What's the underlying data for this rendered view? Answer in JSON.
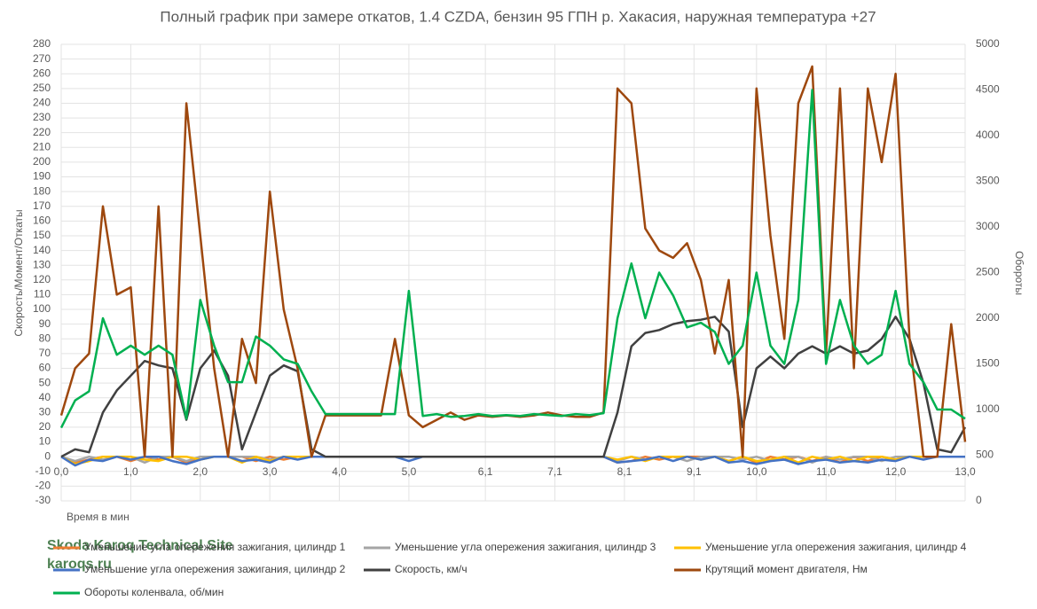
{
  "chart_data": {
    "type": "line",
    "title": "Полный график при замере откатов, 1.4 CZDA, бензин 95 ГПН р. Хакасия, наружная температура +27",
    "x_label": "Время в мин",
    "y_label": "Скорость/Момент/Откаты",
    "y2_label": "Обороты",
    "watermark": [
      "Skoda Karoq Technical Site",
      "karoqs.ru"
    ],
    "grid": true,
    "xlim": [
      0,
      13.0
    ],
    "xticks": [
      {
        "value": 0,
        "label": "0,0"
      },
      {
        "value": 1.0,
        "label": "1,0"
      },
      {
        "value": 2.0,
        "label": "2,0"
      },
      {
        "value": 3.0,
        "label": "3,0"
      },
      {
        "value": 4.0,
        "label": "4,0"
      },
      {
        "value": 5.0,
        "label": "5,0"
      },
      {
        "value": 6.1,
        "label": "6,1"
      },
      {
        "value": 7.1,
        "label": "7,1"
      },
      {
        "value": 8.1,
        "label": "8,1"
      },
      {
        "value": 9.1,
        "label": "9,1"
      },
      {
        "value": 10.0,
        "label": "10,0"
      },
      {
        "value": 11.0,
        "label": "11,0"
      },
      {
        "value": 12.0,
        "label": "12,0"
      },
      {
        "value": 13.0,
        "label": "13,0"
      }
    ],
    "ylim": [
      -30,
      280
    ],
    "yticks": [
      -30,
      -20,
      -10,
      0,
      10,
      20,
      30,
      40,
      50,
      60,
      70,
      80,
      90,
      100,
      110,
      120,
      130,
      140,
      150,
      160,
      170,
      180,
      190,
      200,
      210,
      220,
      230,
      240,
      250,
      260,
      270,
      280
    ],
    "y2lim": [
      0,
      5000
    ],
    "y2ticks": [
      0,
      500,
      1000,
      1500,
      2000,
      2500,
      3000,
      3500,
      4000,
      4500,
      5000
    ],
    "x": [
      0,
      0.2,
      0.4,
      0.6,
      0.8,
      1.0,
      1.2,
      1.4,
      1.6,
      1.8,
      2.0,
      2.2,
      2.4,
      2.6,
      2.8,
      3.0,
      3.2,
      3.4,
      3.6,
      3.8,
      4.0,
      4.2,
      4.4,
      4.6,
      4.8,
      5.0,
      5.2,
      5.4,
      5.6,
      5.8,
      6.0,
      6.2,
      6.4,
      6.6,
      6.8,
      7.0,
      7.2,
      7.4,
      7.6,
      7.8,
      8.0,
      8.2,
      8.4,
      8.6,
      8.8,
      9.0,
      9.2,
      9.4,
      9.6,
      9.8,
      10.0,
      10.2,
      10.4,
      10.6,
      10.8,
      11.0,
      11.2,
      11.4,
      11.6,
      11.8,
      12.0,
      12.2,
      12.4,
      12.6,
      12.8,
      13.0
    ],
    "series": [
      {
        "name": "Уменьшение угла опережения зажигания, цилиндр 1",
        "color": "#ed7d31",
        "values": [
          0,
          -4,
          -2,
          0,
          0,
          -3,
          0,
          -2,
          0,
          -4,
          0,
          0,
          0,
          0,
          -3,
          0,
          -2,
          0,
          0,
          0,
          0,
          0,
          0,
          0,
          0,
          0,
          0,
          0,
          0,
          0,
          0,
          0,
          0,
          0,
          0,
          0,
          0,
          0,
          0,
          0,
          -4,
          -3,
          0,
          -2,
          0,
          0,
          0,
          0,
          -3,
          0,
          -4,
          0,
          -2,
          0,
          -3,
          0,
          -4,
          0,
          -3,
          0,
          -2,
          0,
          0,
          0,
          0,
          0
        ]
      },
      {
        "name": "Уменьшение угла опережения зажигания, цилиндр 3",
        "color": "#a5a5a5",
        "values": [
          0,
          -3,
          0,
          -2,
          0,
          0,
          -4,
          0,
          0,
          -3,
          0,
          0,
          0,
          0,
          0,
          -2,
          0,
          0,
          0,
          0,
          0,
          0,
          0,
          0,
          0,
          0,
          0,
          0,
          0,
          0,
          0,
          0,
          0,
          0,
          0,
          0,
          0,
          0,
          0,
          0,
          -3,
          0,
          -2,
          0,
          0,
          -3,
          0,
          0,
          0,
          -2,
          0,
          -3,
          0,
          0,
          -4,
          0,
          -2,
          0,
          0,
          -3,
          0,
          0,
          0,
          0,
          0,
          0
        ]
      },
      {
        "name": "Уменьшение угла опережения зажигания, цилиндр 4",
        "color": "#ffc000",
        "values": [
          0,
          -5,
          -3,
          0,
          0,
          0,
          -2,
          -3,
          0,
          0,
          -2,
          0,
          0,
          -4,
          0,
          -3,
          0,
          0,
          0,
          0,
          0,
          0,
          0,
          0,
          0,
          0,
          0,
          0,
          0,
          0,
          0,
          0,
          0,
          0,
          0,
          0,
          0,
          0,
          0,
          0,
          -2,
          0,
          -3,
          0,
          0,
          0,
          -2,
          0,
          -3,
          0,
          -3,
          -2,
          0,
          -4,
          0,
          -2,
          0,
          -3,
          0,
          0,
          -2,
          0,
          0,
          0,
          0,
          0
        ]
      },
      {
        "name": "Уменьшение угла опережения зажигания, цилиндр 2",
        "color": "#4472c4",
        "values": [
          0,
          -6,
          -2,
          -3,
          0,
          -2,
          0,
          0,
          -3,
          -5,
          -2,
          0,
          0,
          -3,
          -2,
          -4,
          0,
          -2,
          0,
          0,
          0,
          0,
          0,
          0,
          0,
          -3,
          0,
          0,
          0,
          0,
          0,
          0,
          0,
          0,
          0,
          0,
          0,
          0,
          0,
          0,
          -4,
          -3,
          -2,
          0,
          -3,
          0,
          -2,
          0,
          -4,
          -3,
          -5,
          -3,
          -2,
          -5,
          -3,
          -2,
          -4,
          -3,
          -4,
          -2,
          -3,
          0,
          -2,
          0,
          0,
          0
        ]
      },
      {
        "name": "Скорость, км/ч",
        "color": "#404040",
        "values": [
          0,
          5,
          3,
          30,
          45,
          55,
          65,
          62,
          60,
          25,
          60,
          72,
          55,
          5,
          30,
          55,
          62,
          58,
          5,
          0,
          0,
          0,
          0,
          0,
          0,
          0,
          0,
          0,
          0,
          0,
          0,
          0,
          0,
          0,
          0,
          0,
          0,
          0,
          0,
          0,
          30,
          75,
          84,
          86,
          90,
          92,
          93,
          95,
          85,
          20,
          60,
          68,
          60,
          70,
          75,
          70,
          75,
          70,
          72,
          80,
          95,
          80,
          50,
          5,
          3,
          20
        ]
      },
      {
        "name": "Крутящий момент двигателя, Нм",
        "color": "#9e480e",
        "values": [
          28,
          60,
          70,
          170,
          110,
          115,
          0,
          170,
          0,
          240,
          150,
          60,
          0,
          80,
          50,
          180,
          100,
          60,
          0,
          28,
          28,
          28,
          28,
          28,
          80,
          28,
          20,
          25,
          30,
          25,
          28,
          27,
          28,
          27,
          28,
          30,
          28,
          27,
          27,
          30,
          250,
          240,
          155,
          140,
          135,
          145,
          120,
          70,
          120,
          0,
          250,
          150,
          80,
          240,
          265,
          70,
          250,
          60,
          250,
          200,
          260,
          80,
          0,
          0,
          90,
          10
        ]
      },
      {
        "name": "Обороты коленвала, об/мин",
        "color": "#00b050",
        "axis": "y2",
        "values": [
          800,
          1100,
          1200,
          2000,
          1600,
          1700,
          1600,
          1700,
          1600,
          900,
          2200,
          1700,
          1300,
          1300,
          1800,
          1700,
          1550,
          1500,
          1200,
          950,
          950,
          950,
          950,
          950,
          950,
          2300,
          930,
          950,
          920,
          930,
          950,
          930,
          940,
          930,
          950,
          940,
          930,
          950,
          940,
          960,
          2000,
          2600,
          2000,
          2500,
          2250,
          1900,
          1950,
          1850,
          1500,
          1700,
          2500,
          1700,
          1500,
          2200,
          4500,
          1500,
          2200,
          1700,
          1500,
          1600,
          2300,
          1500,
          1300,
          1000,
          1000,
          900
        ]
      }
    ]
  }
}
